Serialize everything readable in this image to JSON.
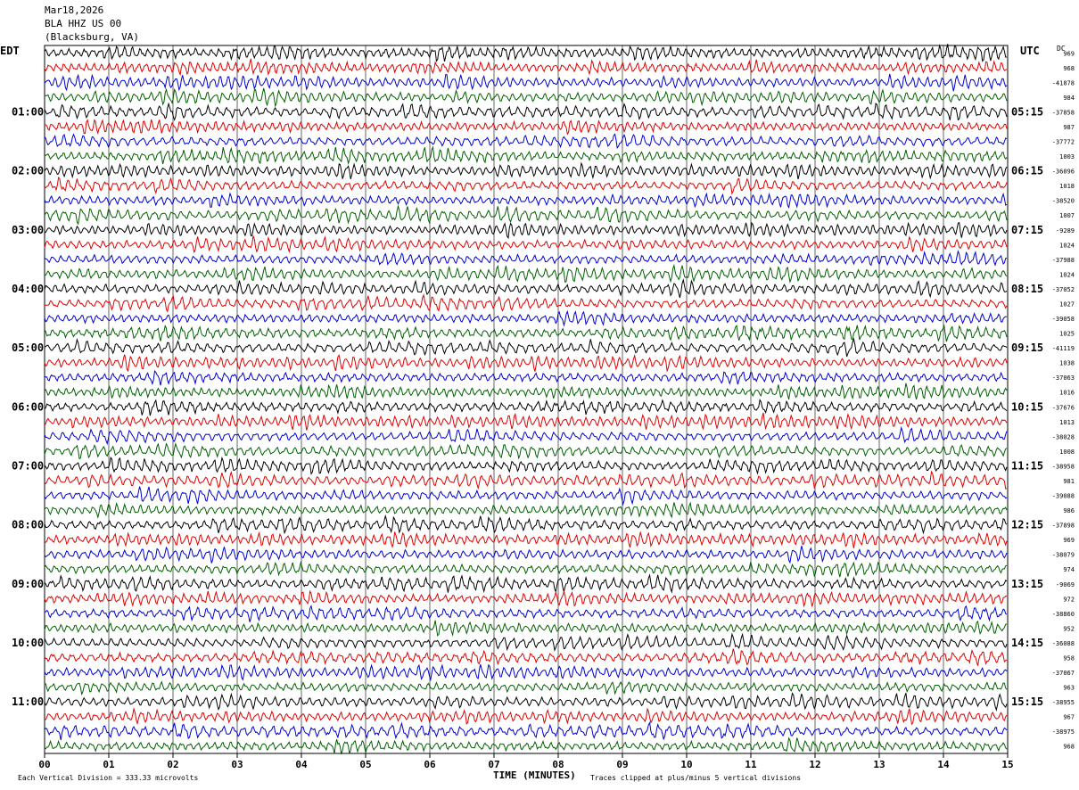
{
  "header": {
    "date": "Mar18,2026",
    "station": "BLA HHZ US 00",
    "location": "(Blacksburg, VA)"
  },
  "labels": {
    "left_tz": "EDT",
    "right_tz": "UTC",
    "dc": "DC"
  },
  "footer": {
    "xlabel": "TIME (MINUTES)",
    "scale_note": "Each Vertical Division =  333.33 microvolts",
    "clip_note": "Traces clipped at plus/minus 5 vertical divisions"
  },
  "colors": {
    "trace_cycle": [
      "#000000",
      "#e00000",
      "#0000d0",
      "#006000"
    ],
    "grid": "#000000",
    "background": "#ffffff"
  },
  "chart_data": {
    "type": "line",
    "title": "BLA HHZ US 00",
    "xlabel": "TIME (MINUTES)",
    "xlim": [
      0,
      15
    ],
    "x_ticks": [
      "00",
      "01",
      "02",
      "03",
      "04",
      "05",
      "06",
      "07",
      "08",
      "09",
      "10",
      "11",
      "12",
      "13",
      "14",
      "15"
    ],
    "rows_per_hour": 4,
    "row_count": 48,
    "left_hour_labels": [
      "01:00",
      "02:00",
      "03:00",
      "04:00",
      "05:00",
      "06:00",
      "07:00",
      "08:00",
      "09:00",
      "10:00",
      "11:00"
    ],
    "right_hour_labels": [
      "05:15",
      "06:15",
      "07:15",
      "08:15",
      "09:15",
      "10:15",
      "11:15",
      "12:15",
      "13:15",
      "14:15",
      "15:15"
    ],
    "dc_offsets": [
      "969",
      "968",
      "-41878",
      "984",
      "-37858",
      "987",
      "-37772",
      "1003",
      "-36096",
      "1018",
      "-38520",
      "1007",
      "-9289",
      "1024",
      "-37988",
      "1024",
      "-37052",
      "1027",
      "-39058",
      "1025",
      "-41119",
      "1038",
      "-37063",
      "1016",
      "-37676",
      "1013",
      "-38028",
      "1008",
      "-38958",
      "981",
      "-39088",
      "986",
      "-37898",
      "969",
      "-38079",
      "974",
      "-9069",
      "972",
      "-38860",
      "952",
      "-36088",
      "958",
      "-37067",
      "963",
      "-38955",
      "967",
      "-38975",
      "968"
    ]
  }
}
